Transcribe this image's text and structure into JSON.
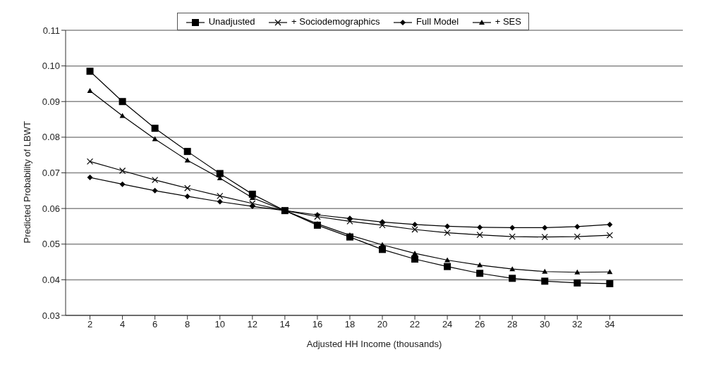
{
  "chart_data": {
    "type": "line",
    "xlabel": "Adjusted HH Income (thousands)",
    "ylabel": "Predicted Probability of LBWT",
    "x": [
      2,
      4,
      6,
      8,
      10,
      12,
      14,
      16,
      18,
      20,
      22,
      24,
      26,
      28,
      30,
      32,
      34
    ],
    "xlim": [
      0.5,
      38.5
    ],
    "xticks": [
      2,
      4,
      6,
      8,
      10,
      12,
      14,
      16,
      18,
      20,
      22,
      24,
      26,
      28,
      30,
      32,
      34
    ],
    "ylim": [
      0.03,
      0.11
    ],
    "yticks": [
      {
        "value": 0.03,
        "label": "0.03"
      },
      {
        "value": 0.04,
        "label": "0.04"
      },
      {
        "value": 0.05,
        "label": "0.05"
      },
      {
        "value": 0.06,
        "label": "0.06"
      },
      {
        "value": 0.07,
        "label": "0.07"
      },
      {
        "value": 0.08,
        "label": "0.08"
      },
      {
        "value": 0.09,
        "label": "0.09"
      },
      {
        "value": 0.1,
        "label": "0.10"
      },
      {
        "value": 0.11,
        "label": "0.11"
      }
    ],
    "grid": "y",
    "legend": "top",
    "line_style": "solid",
    "series": [
      {
        "name": "Unadjusted",
        "color": "#000000",
        "marker": "square",
        "values": [
          0.0985,
          0.09,
          0.0825,
          0.076,
          0.0698,
          0.064,
          0.0594,
          0.0553,
          0.052,
          0.0485,
          0.0458,
          0.0437,
          0.0418,
          0.0404,
          0.0396,
          0.0391,
          0.0389
        ]
      },
      {
        "name": "+ Sociodemographics",
        "color": "#000000",
        "marker": "cross",
        "values": [
          0.0732,
          0.0706,
          0.068,
          0.0657,
          0.0635,
          0.0614,
          0.0594,
          0.0577,
          0.0564,
          0.0553,
          0.0541,
          0.0532,
          0.0526,
          0.0521,
          0.052,
          0.0521,
          0.0525
        ]
      },
      {
        "name": "Full Model",
        "color": "#000000",
        "marker": "diamond",
        "values": [
          0.0687,
          0.0668,
          0.065,
          0.0634,
          0.0619,
          0.0606,
          0.0594,
          0.0582,
          0.0572,
          0.0562,
          0.0555,
          0.055,
          0.0547,
          0.0546,
          0.0546,
          0.0549,
          0.0555
        ]
      },
      {
        "name": "+ SES",
        "color": "#000000",
        "marker": "triangle",
        "values": [
          0.093,
          0.086,
          0.0795,
          0.0735,
          0.0685,
          0.063,
          0.0594,
          0.0557,
          0.0525,
          0.0498,
          0.0474,
          0.0455,
          0.0441,
          0.043,
          0.0423,
          0.0421,
          0.0422
        ]
      }
    ]
  }
}
